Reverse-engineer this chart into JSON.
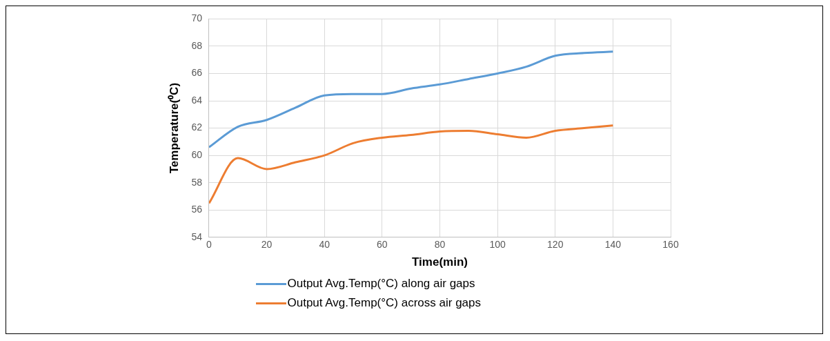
{
  "chart_data": {
    "type": "line",
    "xlabel": "Time(min)",
    "ylabel": "Temperature(⁰C)",
    "x": [
      0,
      10,
      20,
      30,
      40,
      50,
      60,
      70,
      80,
      90,
      100,
      110,
      120,
      130,
      140
    ],
    "series": [
      {
        "name": "Output Avg.Temp(°C) along air gaps",
        "color": "#5b9bd5",
        "values": [
          60.6,
          62.1,
          62.6,
          63.5,
          64.4,
          64.5,
          64.5,
          64.9,
          65.2,
          65.6,
          66.0,
          66.5,
          67.3,
          67.5,
          67.6
        ]
      },
      {
        "name": "Output Avg.Temp(°C) across air gaps",
        "color": "#ed7d31",
        "values": [
          56.5,
          59.8,
          59.0,
          59.5,
          60.0,
          60.9,
          61.3,
          61.5,
          61.75,
          61.8,
          61.55,
          61.3,
          61.8,
          62.0,
          62.2
        ]
      }
    ],
    "xlim": [
      0,
      160
    ],
    "xticks": [
      0,
      20,
      40,
      60,
      80,
      100,
      120,
      140,
      160
    ],
    "ylim": [
      54,
      70
    ],
    "yticks": [
      54,
      56,
      58,
      60,
      62,
      64,
      66,
      68,
      70
    ],
    "grid": true,
    "legend": "bottom",
    "marker": "none",
    "line_style": "solid"
  }
}
